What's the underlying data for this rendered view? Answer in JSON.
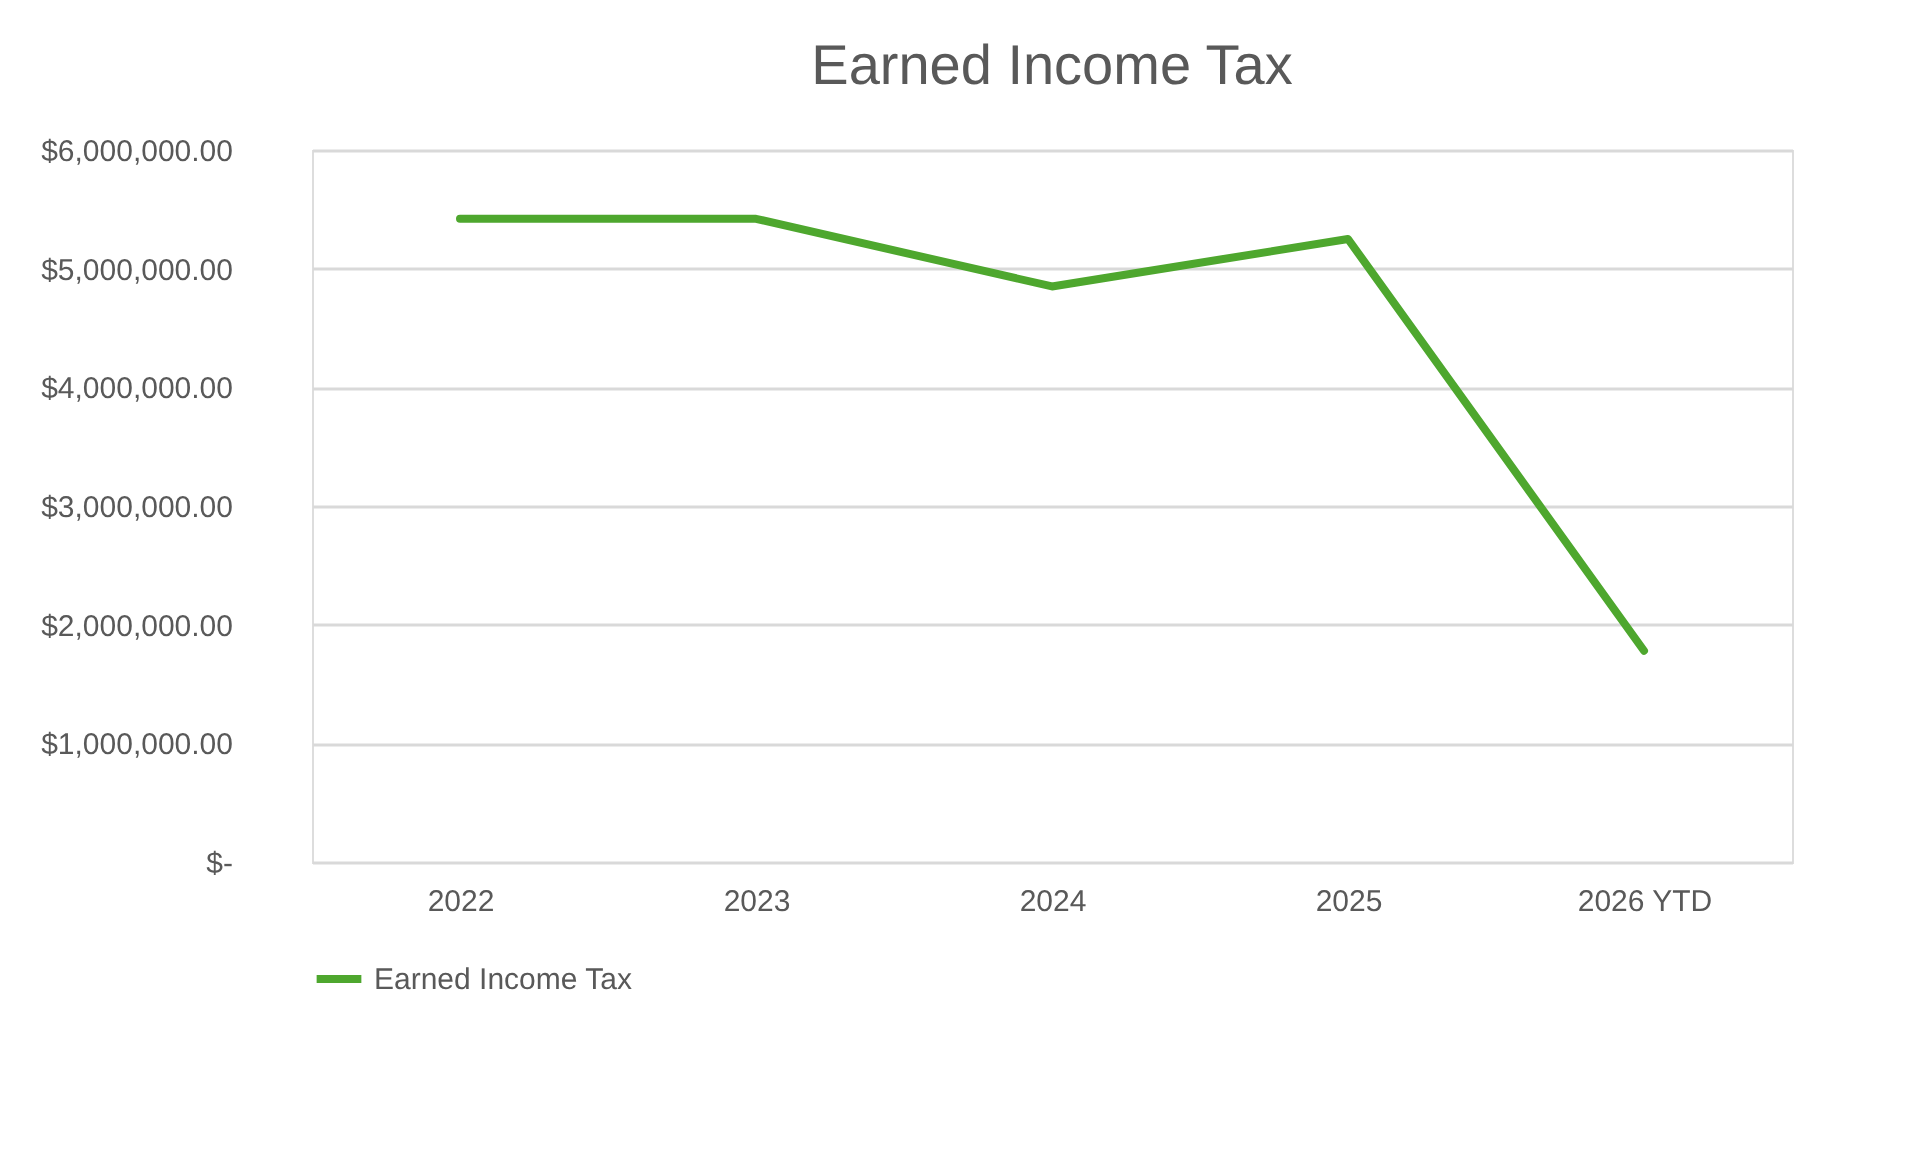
{
  "chart_data": {
    "type": "line",
    "title": "Earned Income Tax",
    "categories": [
      "2022",
      "2023",
      "2024",
      "2025",
      "2026 YTD"
    ],
    "series": [
      {
        "name": "Earned Income Tax",
        "color": "#4ea72e",
        "values": [
          5420000,
          5420000,
          4850000,
          5250000,
          1780000
        ]
      }
    ],
    "ylim": [
      0,
      6000000
    ],
    "yticks": [
      {
        "value": 0,
        "label": "$-"
      },
      {
        "value": 1000000,
        "label": "$1,000,000.00"
      },
      {
        "value": 2000000,
        "label": "$2,000,000.00"
      },
      {
        "value": 3000000,
        "label": "$3,000,000.00"
      },
      {
        "value": 4000000,
        "label": "$4,000,000.00"
      },
      {
        "value": 5000000,
        "label": "$5,000,000.00"
      },
      {
        "value": 6000000,
        "label": "$6,000,000.00"
      }
    ],
    "grid": "y",
    "legend": "bottom",
    "marker": "none",
    "line_style": "solid"
  }
}
